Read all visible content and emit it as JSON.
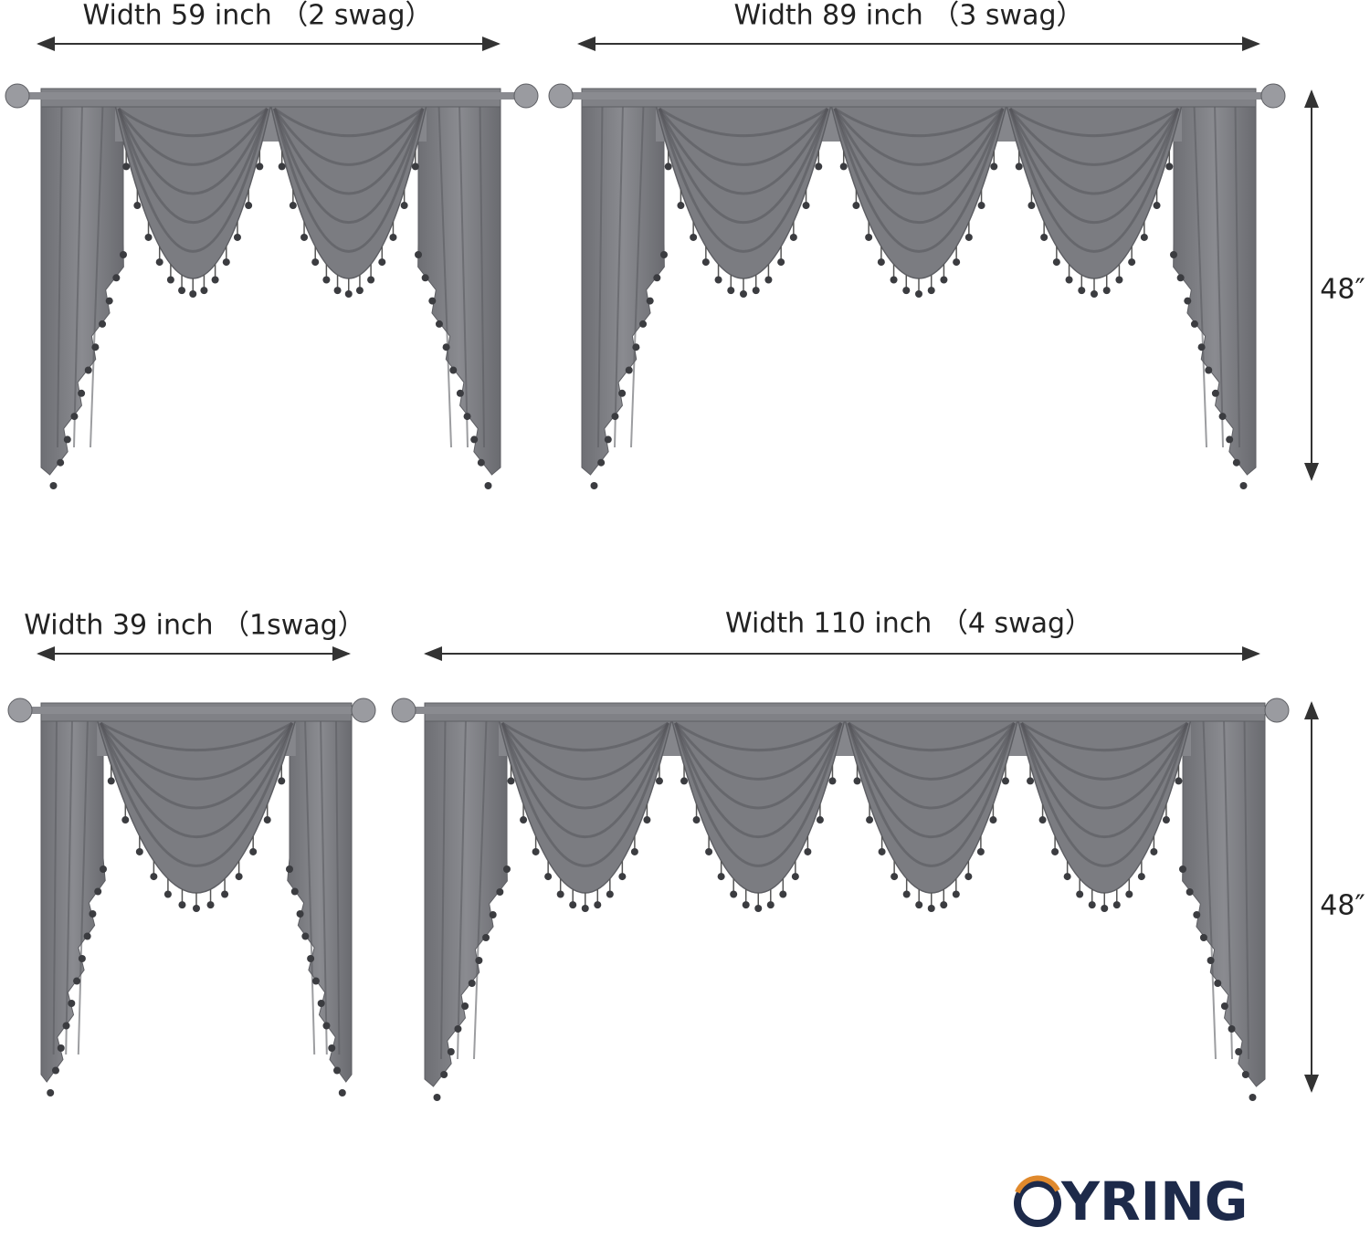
{
  "panels": [
    {
      "label": "Width 59 inch （2 swag）"
    },
    {
      "label": "Width 89 inch （3 swag）",
      "height": "48″"
    },
    {
      "label": "Width 39 inch （1swag）"
    },
    {
      "label": "Width 110 inch （4 swag）",
      "height": "48″"
    }
  ],
  "logo": "YRING"
}
